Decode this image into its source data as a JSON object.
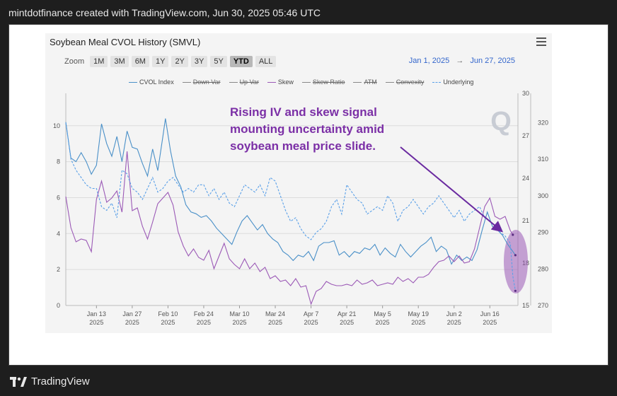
{
  "header": {
    "text": "mintdotfinance created with TradingView.com, Jun 30, 2025 05:46 UTC"
  },
  "footer": {
    "brand": "TradingView"
  },
  "panel": {
    "title": "Soybean Meal CVOL History (SMVL)",
    "zoom_label": "Zoom",
    "zoom_buttons": [
      "1M",
      "3M",
      "6M",
      "1Y",
      "2Y",
      "3Y",
      "5Y",
      "YTD",
      "ALL"
    ],
    "zoom_active": "YTD",
    "range_from": "Jan 1, 2025",
    "range_arrow": "→",
    "range_to": "Jun 27, 2025"
  },
  "legend": [
    {
      "name": "CVOL Index",
      "color": "#4a90c8",
      "style": "solid",
      "enabled": true
    },
    {
      "name": "Down Var",
      "color": "#888888",
      "style": "solid",
      "enabled": false
    },
    {
      "name": "Up Var",
      "color": "#888888",
      "style": "solid",
      "enabled": false
    },
    {
      "name": "Skew",
      "color": "#9b59b6",
      "style": "solid",
      "enabled": true
    },
    {
      "name": "Skew Ratio",
      "color": "#888888",
      "style": "solid",
      "enabled": false
    },
    {
      "name": "ATM",
      "color": "#888888",
      "style": "solid",
      "enabled": false
    },
    {
      "name": "Convexity",
      "color": "#888888",
      "style": "solid",
      "enabled": false
    },
    {
      "name": "Underlying",
      "color": "#5aa0e8",
      "style": "dashed",
      "enabled": true
    }
  ],
  "annotation": {
    "lines": [
      "Rising IV and skew signal",
      "mounting uncertainty amid",
      "soybean meal price slide."
    ],
    "color": "#7b2fa6"
  },
  "watermark": "Q",
  "chart_data": {
    "type": "line",
    "x_ticks": [
      {
        "label": "Jan 13",
        "year": "2025",
        "day": 13
      },
      {
        "label": "Jan 27",
        "year": "2025",
        "day": 27
      },
      {
        "label": "Feb 10",
        "year": "2025",
        "day": 41
      },
      {
        "label": "Feb 24",
        "year": "2025",
        "day": 55
      },
      {
        "label": "Mar 10",
        "year": "2025",
        "day": 69
      },
      {
        "label": "Mar 24",
        "year": "2025",
        "day": 83
      },
      {
        "label": "Apr 7",
        "year": "2025",
        "day": 97
      },
      {
        "label": "Apr 21",
        "year": "2025",
        "day": 111
      },
      {
        "label": "May 5",
        "year": "2025",
        "day": 125
      },
      {
        "label": "May 19",
        "year": "2025",
        "day": 139
      },
      {
        "label": "Jun 2",
        "year": "2025",
        "day": 153
      },
      {
        "label": "Jun 16",
        "year": "2025",
        "day": 167
      }
    ],
    "xlim": [
      1,
      178
    ],
    "left_axis": {
      "ticks": [
        0,
        2,
        4,
        6,
        8,
        10
      ],
      "ylim": [
        0,
        11.8
      ]
    },
    "skew_axis": {
      "ticks": [
        15,
        18,
        21,
        24,
        27,
        30
      ],
      "ylim": [
        15,
        30
      ]
    },
    "price_axis": {
      "ticks": [
        270,
        280,
        290,
        300,
        310,
        320
      ],
      "ylim": [
        270,
        328
      ]
    },
    "series": [
      {
        "name": "CVOL Index",
        "axis": "left",
        "color": "#4a90c8",
        "dash": false,
        "points": [
          [
            1,
            10.2
          ],
          [
            3,
            8.2
          ],
          [
            5,
            8.0
          ],
          [
            7,
            8.5
          ],
          [
            9,
            8.0
          ],
          [
            11,
            7.3
          ],
          [
            13,
            7.8
          ],
          [
            15,
            10.1
          ],
          [
            17,
            9.0
          ],
          [
            19,
            8.3
          ],
          [
            21,
            9.4
          ],
          [
            23,
            8.0
          ],
          [
            25,
            9.7
          ],
          [
            27,
            8.8
          ],
          [
            29,
            8.7
          ],
          [
            31,
            7.9
          ],
          [
            33,
            7.2
          ],
          [
            35,
            8.7
          ],
          [
            37,
            7.5
          ],
          [
            39,
            9.4
          ],
          [
            40,
            10.4
          ],
          [
            42,
            8.6
          ],
          [
            44,
            7.2
          ],
          [
            46,
            6.6
          ],
          [
            48,
            5.6
          ],
          [
            50,
            5.2
          ],
          [
            52,
            5.1
          ],
          [
            54,
            4.9
          ],
          [
            56,
            5.0
          ],
          [
            58,
            4.7
          ],
          [
            60,
            4.3
          ],
          [
            62,
            4.0
          ],
          [
            64,
            3.7
          ],
          [
            66,
            3.4
          ],
          [
            68,
            4.1
          ],
          [
            70,
            4.7
          ],
          [
            72,
            5.0
          ],
          [
            74,
            4.6
          ],
          [
            76,
            4.2
          ],
          [
            78,
            4.5
          ],
          [
            80,
            4.0
          ],
          [
            82,
            3.7
          ],
          [
            84,
            3.5
          ],
          [
            86,
            3.0
          ],
          [
            88,
            2.8
          ],
          [
            90,
            2.5
          ],
          [
            92,
            2.8
          ],
          [
            94,
            2.7
          ],
          [
            96,
            3.0
          ],
          [
            98,
            2.5
          ],
          [
            100,
            3.3
          ],
          [
            102,
            3.5
          ],
          [
            104,
            3.5
          ],
          [
            106,
            3.6
          ],
          [
            108,
            2.8
          ],
          [
            110,
            3.0
          ],
          [
            112,
            2.7
          ],
          [
            114,
            3.0
          ],
          [
            116,
            2.9
          ],
          [
            118,
            3.2
          ],
          [
            120,
            3.1
          ],
          [
            122,
            3.4
          ],
          [
            124,
            2.8
          ],
          [
            126,
            3.2
          ],
          [
            128,
            2.9
          ],
          [
            130,
            2.7
          ],
          [
            132,
            3.4
          ],
          [
            134,
            3.0
          ],
          [
            136,
            2.7
          ],
          [
            138,
            3.0
          ],
          [
            140,
            3.3
          ],
          [
            142,
            3.5
          ],
          [
            144,
            3.8
          ],
          [
            146,
            3.0
          ],
          [
            148,
            3.3
          ],
          [
            150,
            3.1
          ],
          [
            152,
            2.3
          ],
          [
            154,
            2.8
          ],
          [
            156,
            2.5
          ],
          [
            158,
            2.7
          ],
          [
            160,
            2.5
          ],
          [
            162,
            3.1
          ],
          [
            164,
            4.2
          ],
          [
            166,
            5.2
          ],
          [
            168,
            4.4
          ],
          [
            170,
            4.2
          ],
          [
            172,
            3.9
          ],
          [
            174,
            3.4
          ],
          [
            176,
            3.0
          ],
          [
            177,
            2.8
          ]
        ]
      },
      {
        "name": "Skew",
        "axis": "skew",
        "color": "#9b59b6",
        "dash": false,
        "points": [
          [
            1,
            22.7
          ],
          [
            3,
            20.5
          ],
          [
            5,
            19.5
          ],
          [
            7,
            19.7
          ],
          [
            9,
            19.6
          ],
          [
            11,
            18.8
          ],
          [
            13,
            22.5
          ],
          [
            15,
            23.8
          ],
          [
            17,
            22.3
          ],
          [
            19,
            22.6
          ],
          [
            21,
            23.1
          ],
          [
            23,
            21.6
          ],
          [
            25,
            25.9
          ],
          [
            27,
            21.7
          ],
          [
            29,
            21.9
          ],
          [
            31,
            20.6
          ],
          [
            33,
            19.7
          ],
          [
            35,
            20.9
          ],
          [
            37,
            22.2
          ],
          [
            39,
            22.6
          ],
          [
            41,
            23.0
          ],
          [
            43,
            22.1
          ],
          [
            45,
            20.2
          ],
          [
            47,
            19.2
          ],
          [
            49,
            18.5
          ],
          [
            51,
            19.0
          ],
          [
            53,
            18.4
          ],
          [
            55,
            18.2
          ],
          [
            57,
            18.9
          ],
          [
            59,
            17.6
          ],
          [
            61,
            18.5
          ],
          [
            63,
            19.4
          ],
          [
            65,
            18.3
          ],
          [
            67,
            17.9
          ],
          [
            69,
            17.6
          ],
          [
            71,
            18.3
          ],
          [
            73,
            17.6
          ],
          [
            75,
            18.0
          ],
          [
            77,
            17.4
          ],
          [
            79,
            17.7
          ],
          [
            81,
            16.9
          ],
          [
            83,
            17.1
          ],
          [
            85,
            16.7
          ],
          [
            87,
            16.8
          ],
          [
            89,
            16.4
          ],
          [
            91,
            16.9
          ],
          [
            93,
            16.3
          ],
          [
            95,
            16.4
          ],
          [
            97,
            15.1
          ],
          [
            99,
            16.0
          ],
          [
            101,
            16.2
          ],
          [
            103,
            16.7
          ],
          [
            105,
            16.5
          ],
          [
            107,
            16.4
          ],
          [
            109,
            16.4
          ],
          [
            111,
            16.5
          ],
          [
            113,
            16.4
          ],
          [
            115,
            16.8
          ],
          [
            117,
            16.5
          ],
          [
            119,
            16.6
          ],
          [
            121,
            16.8
          ],
          [
            123,
            16.4
          ],
          [
            125,
            16.5
          ],
          [
            127,
            16.6
          ],
          [
            129,
            16.5
          ],
          [
            131,
            17.0
          ],
          [
            133,
            16.7
          ],
          [
            135,
            16.9
          ],
          [
            137,
            16.6
          ],
          [
            139,
            17.0
          ],
          [
            141,
            17.0
          ],
          [
            143,
            17.2
          ],
          [
            145,
            17.7
          ],
          [
            147,
            18.1
          ],
          [
            149,
            18.2
          ],
          [
            151,
            18.5
          ],
          [
            153,
            18.1
          ],
          [
            155,
            18.5
          ],
          [
            157,
            18.0
          ],
          [
            159,
            18.1
          ],
          [
            161,
            19.0
          ],
          [
            163,
            20.5
          ],
          [
            165,
            22.0
          ],
          [
            167,
            22.6
          ],
          [
            169,
            21.3
          ],
          [
            171,
            21.1
          ],
          [
            173,
            21.3
          ],
          [
            175,
            20.3
          ],
          [
            176,
            20.0
          ]
        ]
      },
      {
        "name": "Underlying",
        "axis": "price",
        "color": "#5aa0e8",
        "dash": true,
        "points": [
          [
            1,
            320
          ],
          [
            3,
            310
          ],
          [
            5,
            307
          ],
          [
            7,
            305
          ],
          [
            9,
            303
          ],
          [
            11,
            302
          ],
          [
            13,
            302
          ],
          [
            15,
            297
          ],
          [
            17,
            296
          ],
          [
            19,
            298
          ],
          [
            21,
            294
          ],
          [
            23,
            307
          ],
          [
            25,
            306
          ],
          [
            27,
            302
          ],
          [
            29,
            301
          ],
          [
            31,
            299
          ],
          [
            33,
            302
          ],
          [
            35,
            305
          ],
          [
            37,
            301
          ],
          [
            39,
            302
          ],
          [
            41,
            304
          ],
          [
            43,
            305
          ],
          [
            45,
            303
          ],
          [
            47,
            301
          ],
          [
            49,
            302
          ],
          [
            51,
            301
          ],
          [
            53,
            303
          ],
          [
            55,
            303
          ],
          [
            57,
            300
          ],
          [
            59,
            302
          ],
          [
            61,
            299
          ],
          [
            63,
            301
          ],
          [
            65,
            298
          ],
          [
            67,
            297
          ],
          [
            69,
            300
          ],
          [
            71,
            303
          ],
          [
            73,
            302
          ],
          [
            75,
            301
          ],
          [
            77,
            303
          ],
          [
            79,
            300
          ],
          [
            81,
            305
          ],
          [
            83,
            304
          ],
          [
            85,
            300
          ],
          [
            87,
            296
          ],
          [
            89,
            293
          ],
          [
            91,
            294
          ],
          [
            93,
            291
          ],
          [
            95,
            289
          ],
          [
            97,
            288
          ],
          [
            99,
            290
          ],
          [
            101,
            291
          ],
          [
            103,
            293
          ],
          [
            105,
            297
          ],
          [
            107,
            299
          ],
          [
            109,
            295
          ],
          [
            111,
            303
          ],
          [
            113,
            301
          ],
          [
            115,
            299
          ],
          [
            117,
            298
          ],
          [
            119,
            295
          ],
          [
            121,
            296
          ],
          [
            123,
            297
          ],
          [
            125,
            296
          ],
          [
            127,
            300
          ],
          [
            129,
            298
          ],
          [
            131,
            293
          ],
          [
            133,
            296
          ],
          [
            135,
            297
          ],
          [
            137,
            299
          ],
          [
            139,
            297
          ],
          [
            141,
            295
          ],
          [
            143,
            297
          ],
          [
            145,
            298
          ],
          [
            147,
            300
          ],
          [
            149,
            298
          ],
          [
            151,
            296
          ],
          [
            153,
            294
          ],
          [
            155,
            296
          ],
          [
            157,
            293
          ],
          [
            159,
            295
          ],
          [
            161,
            296
          ],
          [
            163,
            297
          ],
          [
            165,
            294
          ],
          [
            167,
            293
          ],
          [
            169,
            292
          ],
          [
            171,
            290
          ],
          [
            173,
            289
          ],
          [
            175,
            287
          ],
          [
            176,
            278
          ],
          [
            177,
            274
          ]
        ]
      }
    ]
  }
}
